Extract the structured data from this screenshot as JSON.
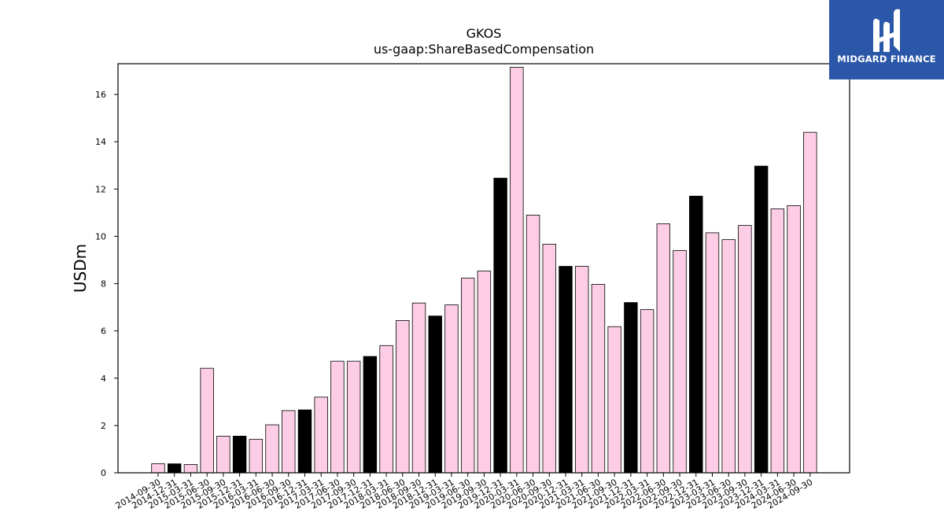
{
  "chart_data": {
    "type": "bar",
    "title": "GKOS",
    "subtitle": "us-gaap:ShareBasedCompensation",
    "xlabel": "",
    "ylabel": "USDm",
    "ylim": [
      0,
      17.3
    ],
    "yticks": [
      0,
      2,
      4,
      6,
      8,
      10,
      12,
      14,
      16
    ],
    "grid": false,
    "colors": {
      "quarter": "#fccde5",
      "year_end": "#000000",
      "edge": "#000000"
    },
    "categories": [
      "2014-09-30",
      "2014-12-31",
      "2015-03-31",
      "2015-06-30",
      "2015-09-30",
      "2015-12-31",
      "2016-03-31",
      "2016-06-30",
      "2016-09-30",
      "2016-12-31",
      "2017-03-31",
      "2017-06-30",
      "2017-09-30",
      "2017-12-31",
      "2018-03-31",
      "2018-06-30",
      "2018-09-30",
      "2018-12-31",
      "2019-03-31",
      "2019-06-30",
      "2019-09-30",
      "2019-12-31",
      "2020-03-31",
      "2020-06-30",
      "2020-09-30",
      "2020-12-31",
      "2021-03-31",
      "2021-06-30",
      "2021-09-30",
      "2021-12-31",
      "2022-03-31",
      "2022-06-30",
      "2022-09-30",
      "2022-12-31",
      "2023-03-31",
      "2023-06-30",
      "2023-09-30",
      "2023-12-31",
      "2024-03-31",
      "2024-06-30",
      "2024-09-30"
    ],
    "values": [
      0.38,
      0.38,
      0.35,
      4.42,
      1.55,
      1.55,
      1.42,
      2.03,
      2.63,
      2.66,
      3.2,
      4.72,
      4.72,
      4.92,
      5.38,
      6.44,
      7.18,
      6.63,
      7.1,
      8.23,
      8.53,
      12.46,
      17.15,
      10.9,
      9.67,
      8.73,
      8.73,
      7.97,
      6.18,
      7.2,
      6.9,
      10.53,
      9.4,
      11.7,
      10.15,
      9.86,
      10.46,
      12.97,
      11.16,
      11.3,
      14.4
    ],
    "highlight": [
      false,
      true,
      false,
      false,
      false,
      true,
      false,
      false,
      false,
      true,
      false,
      false,
      false,
      true,
      false,
      false,
      false,
      true,
      false,
      false,
      false,
      true,
      false,
      false,
      false,
      true,
      false,
      false,
      false,
      true,
      false,
      false,
      false,
      true,
      false,
      false,
      false,
      true,
      false,
      false,
      false
    ]
  },
  "logo": {
    "text": "MIDGARD FINANCE",
    "bg": "#2b57a8"
  }
}
